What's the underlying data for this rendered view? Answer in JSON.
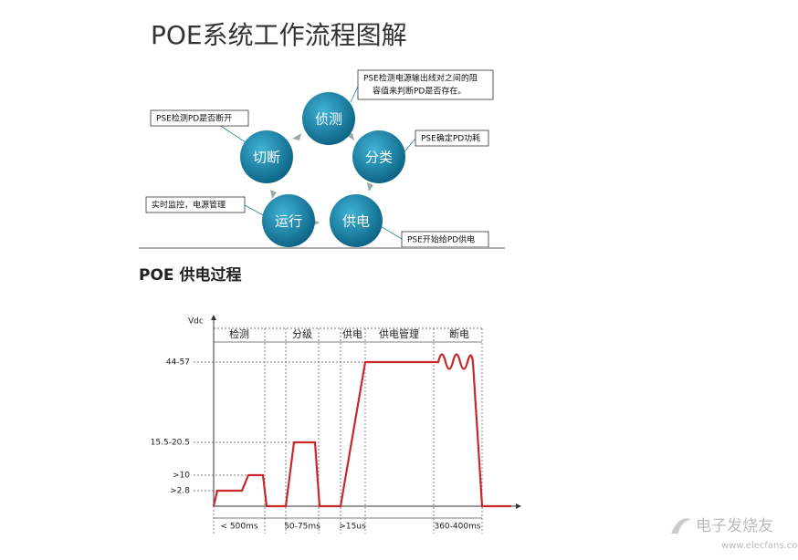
{
  "title": "POE系统工作流程图解",
  "cycle": {
    "nodes": [
      "侦测",
      "分类",
      "供电",
      "运行",
      "切断"
    ],
    "notes": [
      {
        "line1": "PSE检测电源输出线对之间的阻",
        "line2": "容值来判断PD是否存在。"
      },
      {
        "line1": "PSE确定PD功耗"
      },
      {
        "line1": "PSE开始给PD供电"
      },
      {
        "line1": "实时监控，电源管理"
      },
      {
        "line1": "PSE检测PD是否断开"
      }
    ]
  },
  "section_title": "POE 供电过程",
  "graph": {
    "y_axis_label": "Vdc",
    "levels": [
      "44-57",
      "15.5-20.5",
      ">10",
      ">2.8"
    ],
    "phases": [
      "检测",
      "分级",
      "供电",
      "供电管理",
      "断电"
    ],
    "durations": [
      "< 500ms",
      "50-75ms",
      ">15us",
      "360-400ms"
    ]
  },
  "watermark": {
    "brand": "电子发烧友",
    "url": "www.elecfans.com"
  }
}
